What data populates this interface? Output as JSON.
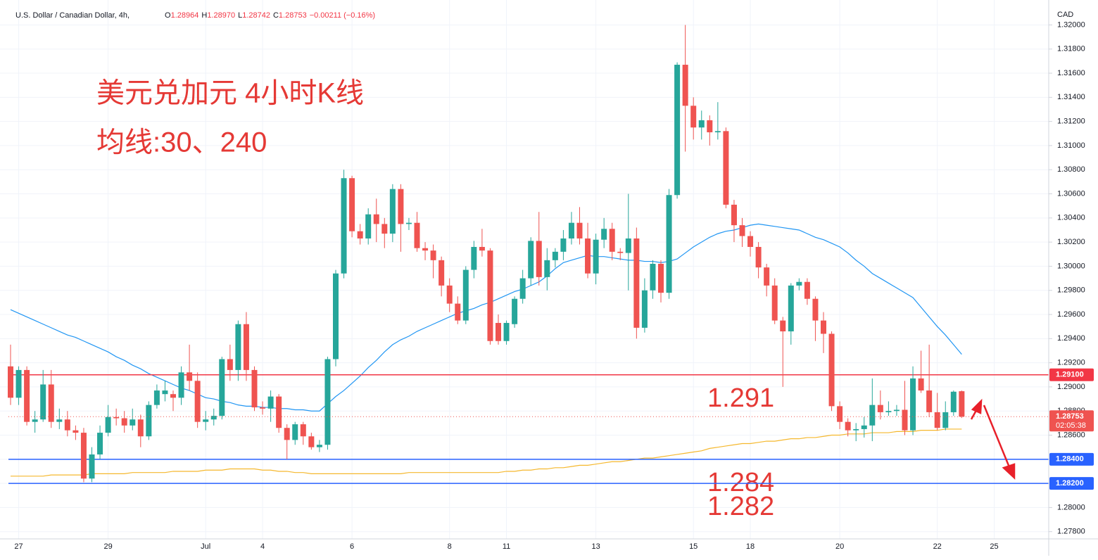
{
  "chart_data": {
    "type": "candlestick",
    "header": {
      "symbol": "U.S. Dollar / Canadian Dollar, 4h,",
      "ohlc": [
        {
          "label": "O",
          "value": "1.28964"
        },
        {
          "label": "H",
          "value": "1.28970"
        },
        {
          "label": "L",
          "value": "1.28742"
        },
        {
          "label": "C",
          "value": "1.28753"
        }
      ],
      "change": "−0.00211 (−0.16%)"
    },
    "annotations": [
      "美元兑加元 4小时K线",
      "均线:30、240"
    ],
    "currency": "CAD",
    "countdown": "02:05:38",
    "up_color": "#26a69a",
    "down_color": "#ef5350",
    "grid": true,
    "ylim": [
      1.2774,
      1.3216
    ],
    "yticks": [
      {
        "value": 1.278,
        "label": "1.27800"
      },
      {
        "value": 1.28,
        "label": "1.28000"
      },
      {
        "value": 1.282,
        "label": "1.28200"
      },
      {
        "value": 1.284,
        "label": "1.28400"
      },
      {
        "value": 1.286,
        "label": "1.28600"
      },
      {
        "value": 1.288,
        "label": "1.28800"
      },
      {
        "value": 1.29,
        "label": "1.29000"
      },
      {
        "value": 1.292,
        "label": "1.29200"
      },
      {
        "value": 1.294,
        "label": "1.29400"
      },
      {
        "value": 1.296,
        "label": "1.29600"
      },
      {
        "value": 1.298,
        "label": "1.29800"
      },
      {
        "value": 1.3,
        "label": "1.30000"
      },
      {
        "value": 1.302,
        "label": "1.30200"
      },
      {
        "value": 1.304,
        "label": "1.30400"
      },
      {
        "value": 1.306,
        "label": "1.30600"
      },
      {
        "value": 1.308,
        "label": "1.30800"
      },
      {
        "value": 1.31,
        "label": "1.31000"
      },
      {
        "value": 1.312,
        "label": "1.31200"
      },
      {
        "value": 1.314,
        "label": "1.31400"
      },
      {
        "value": 1.316,
        "label": "1.31600"
      },
      {
        "value": 1.318,
        "label": "1.31800"
      },
      {
        "value": 1.32,
        "label": "1.32000"
      }
    ],
    "categories": [
      null,
      "27",
      null,
      null,
      null,
      null,
      null,
      null,
      null,
      null,
      null,
      null,
      "29",
      null,
      null,
      null,
      null,
      null,
      null,
      null,
      null,
      null,
      null,
      null,
      "Jul",
      null,
      null,
      null,
      null,
      null,
      null,
      "4",
      null,
      null,
      null,
      null,
      null,
      null,
      null,
      null,
      null,
      null,
      "6",
      null,
      null,
      null,
      null,
      null,
      null,
      null,
      null,
      null,
      null,
      null,
      "8",
      null,
      null,
      null,
      null,
      null,
      null,
      "11",
      null,
      null,
      null,
      null,
      null,
      null,
      null,
      null,
      null,
      null,
      "13",
      null,
      null,
      null,
      null,
      null,
      null,
      null,
      null,
      null,
      null,
      null,
      "15",
      null,
      null,
      null,
      null,
      null,
      null,
      "18",
      null,
      null,
      null,
      null,
      null,
      null,
      null,
      null,
      null,
      null,
      "20",
      null,
      null,
      null,
      null,
      null,
      null,
      null,
      null,
      null,
      null,
      null,
      "22",
      null,
      null,
      null
    ],
    "extra_x_labels": [
      "25"
    ],
    "open": [
      1.2917,
      1.2891,
      1.2914,
      1.2871,
      1.2873,
      1.2902,
      1.2871,
      1.2873,
      1.2864,
      1.2862,
      1.2824,
      1.2844,
      1.2862,
      1.2875,
      1.2874,
      1.2868,
      1.2873,
      1.2859,
      1.2885,
      1.2894,
      1.2894,
      1.2891,
      1.2912,
      1.2905,
      1.2871,
      1.2873,
      1.2876,
      1.2923,
      1.2914,
      1.2952,
      1.2914,
      1.2883,
      1.2882,
      1.2892,
      1.2866,
      1.2856,
      1.2869,
      1.2859,
      1.285,
      1.2852,
      1.2923,
      1.2994,
      1.3073,
      1.3029,
      1.3023,
      1.3043,
      1.3035,
      1.3027,
      1.3064,
      1.3035,
      1.3036,
      1.3015,
      1.3013,
      1.3005,
      1.2984,
      1.2969,
      1.2955,
      1.2997,
      1.3016,
      1.3013,
      1.2953,
      1.2938,
      1.2952,
      1.2973,
      1.299,
      1.3021,
      1.2991,
      1.3005,
      1.3012,
      1.3023,
      1.3036,
      1.3023,
      1.2994,
      1.3022,
      1.3031,
      1.3012,
      1.3011,
      1.3023,
      1.2949,
      1.298,
      1.3002,
      1.2978,
      1.3059,
      1.3167,
      1.3133,
      1.3115,
      1.3121,
      1.3111,
      1.3112,
      1.3051,
      1.3034,
      1.3025,
      1.3016,
      1.2999,
      1.2984,
      1.2955,
      1.2946,
      1.2984,
      1.2987,
      1.2973,
      1.2955,
      1.2944,
      1.2884,
      1.2871,
      1.2864,
      1.2865,
      1.2868,
      1.2885,
      1.2879,
      1.288,
      1.2881,
      1.2864,
      1.2907,
      1.2897,
      1.2879,
      1.2866,
      1.2879,
      1.28964
    ],
    "high": [
      1.2935,
      1.2917,
      1.2917,
      1.288,
      1.2914,
      1.2914,
      1.2882,
      1.288,
      1.2868,
      1.2866,
      1.285,
      1.2868,
      1.2885,
      1.2882,
      1.288,
      1.2882,
      1.2877,
      1.2888,
      1.2902,
      1.2905,
      1.2897,
      1.2917,
      1.2935,
      1.2912,
      1.288,
      1.2882,
      1.2925,
      1.2935,
      1.2955,
      1.2962,
      1.2917,
      1.2888,
      1.2897,
      1.2894,
      1.2869,
      1.2871,
      1.2871,
      1.2862,
      1.2856,
      1.2925,
      1.2997,
      1.308,
      1.3075,
      1.3035,
      1.3048,
      1.3056,
      1.304,
      1.3068,
      1.3068,
      1.304,
      1.3045,
      1.302,
      1.3018,
      1.3008,
      1.299,
      1.2975,
      1.3,
      1.3021,
      1.3031,
      1.3015,
      1.296,
      1.2955,
      1.2975,
      1.2997,
      1.3024,
      1.3045,
      1.3015,
      1.3015,
      1.303,
      1.3045,
      1.3049,
      1.3036,
      1.3027,
      1.304,
      1.3036,
      1.3015,
      1.306,
      1.3032,
      1.299,
      1.3005,
      1.3005,
      1.3064,
      1.3169,
      1.32,
      1.314,
      1.3129,
      1.3125,
      1.3136,
      1.3115,
      1.3055,
      1.304,
      1.3029,
      1.302,
      1.3002,
      1.299,
      1.2958,
      1.2986,
      1.299,
      1.299,
      1.2975,
      1.2962,
      1.2946,
      1.2888,
      1.2874,
      1.287,
      1.2875,
      1.2907,
      1.2897,
      1.2888,
      1.2885,
      1.2905,
      1.2917,
      1.293,
      1.2935,
      1.2895,
      1.2888,
      1.2897,
      1.2897
    ],
    "low": [
      1.2885,
      1.2885,
      1.2868,
      1.2862,
      1.2871,
      1.2866,
      1.2865,
      1.2859,
      1.2856,
      1.2821,
      1.2821,
      1.284,
      1.2859,
      1.2868,
      1.2862,
      1.2864,
      1.285,
      1.2856,
      1.2882,
      1.2888,
      1.288,
      1.2885,
      1.2897,
      1.2866,
      1.2864,
      1.2868,
      1.2873,
      1.2905,
      1.2905,
      1.2905,
      1.288,
      1.2877,
      1.2871,
      1.2862,
      1.284,
      1.2852,
      1.2852,
      1.2848,
      1.2846,
      1.2848,
      1.2917,
      1.299,
      1.3024,
      1.3018,
      1.3018,
      1.302,
      1.3015,
      1.302,
      1.3012,
      1.303,
      1.3012,
      1.3005,
      1.299,
      1.2975,
      1.2962,
      1.2952,
      1.2952,
      1.299,
      1.3008,
      1.2935,
      1.2935,
      1.2935,
      1.2949,
      1.2969,
      1.2984,
      1.2984,
      1.298,
      1.2999,
      1.3005,
      1.3018,
      1.3018,
      1.299,
      1.2985,
      1.3015,
      1.3005,
      1.3005,
      1.298,
      1.294,
      1.2945,
      1.2973,
      1.297,
      1.2973,
      1.3056,
      1.3095,
      1.3105,
      1.3105,
      1.31,
      1.3105,
      1.3048,
      1.302,
      1.3016,
      1.3008,
      1.299,
      1.2975,
      1.2952,
      1.29,
      1.2935,
      1.298,
      1.2968,
      1.2938,
      1.2928,
      1.288,
      1.2865,
      1.2859,
      1.2855,
      1.2858,
      1.2855,
      1.2873,
      1.2876,
      1.2876,
      1.286,
      1.286,
      1.2895,
      1.2875,
      1.2864,
      1.2864,
      1.2876,
      1.28742
    ],
    "close": [
      1.2891,
      1.2914,
      1.2871,
      1.2873,
      1.2902,
      1.2871,
      1.2873,
      1.2864,
      1.2862,
      1.2824,
      1.2844,
      1.2862,
      1.2875,
      1.2874,
      1.2868,
      1.2873,
      1.2859,
      1.2885,
      1.2897,
      1.2897,
      1.2891,
      1.2912,
      1.2905,
      1.2871,
      1.2873,
      1.2876,
      1.2923,
      1.2914,
      1.2952,
      1.2914,
      1.2883,
      1.2882,
      1.2892,
      1.2866,
      1.2856,
      1.2869,
      1.2859,
      1.285,
      1.2852,
      1.2923,
      1.2994,
      1.3073,
      1.3029,
      1.3023,
      1.3043,
      1.3035,
      1.3027,
      1.3064,
      1.3035,
      1.3036,
      1.3015,
      1.3013,
      1.3005,
      1.2984,
      1.2969,
      1.2955,
      1.2997,
      1.3016,
      1.3013,
      1.2938,
      1.2938,
      1.2953,
      1.2973,
      1.299,
      1.3021,
      1.2991,
      1.3005,
      1.3012,
      1.3023,
      1.3036,
      1.3023,
      1.2994,
      1.3022,
      1.3031,
      1.3012,
      1.3011,
      1.3023,
      1.2949,
      1.298,
      1.3002,
      1.2978,
      1.3059,
      1.3167,
      1.3133,
      1.3115,
      1.3121,
      1.3111,
      1.3112,
      1.3051,
      1.3034,
      1.3025,
      1.3016,
      1.2999,
      1.2984,
      1.2955,
      1.2946,
      1.2984,
      1.2987,
      1.2973,
      1.2955,
      1.2944,
      1.2884,
      1.2871,
      1.2864,
      1.2865,
      1.2868,
      1.2885,
      1.2879,
      1.288,
      1.2881,
      1.2864,
      1.2907,
      1.2897,
      1.2879,
      1.2866,
      1.2879,
      1.2896,
      1.28753
    ],
    "overlays": [
      {
        "color": "#2196f3",
        "values": [
          1.2964,
          1.2961,
          1.2958,
          1.2955,
          1.2952,
          1.2949,
          1.2946,
          1.2943,
          1.2941,
          1.2938,
          1.2935,
          1.2932,
          1.2929,
          1.2925,
          1.2922,
          1.2918,
          1.2915,
          1.2911,
          1.2908,
          1.2905,
          1.2902,
          1.2899,
          1.2897,
          1.2894,
          1.2891,
          1.289,
          1.2888,
          1.2887,
          1.2885,
          1.2884,
          1.2884,
          1.2883,
          1.2883,
          1.2882,
          1.2882,
          1.2881,
          1.2881,
          1.288,
          1.288,
          1.2886,
          1.2892,
          1.2897,
          1.2903,
          1.2909,
          1.2916,
          1.2922,
          1.2929,
          1.2935,
          1.2939,
          1.2942,
          1.2946,
          1.2949,
          1.2952,
          1.2955,
          1.2958,
          1.2961,
          1.2963,
          1.2965,
          1.2968,
          1.297,
          1.2973,
          1.2976,
          1.2979,
          1.2981,
          1.2984,
          1.2987,
          1.2992,
          1.2998,
          1.3003,
          1.3005,
          1.3007,
          1.3009,
          1.3008,
          1.3008,
          1.3007,
          1.3006,
          1.3005,
          1.3005,
          1.3004,
          1.3004,
          1.3003,
          1.3004,
          1.3006,
          1.3011,
          1.3016,
          1.302,
          1.3024,
          1.3027,
          1.3029,
          1.303,
          1.3032,
          1.3034,
          1.3035,
          1.3034,
          1.3033,
          1.3032,
          1.3031,
          1.303,
          1.3027,
          1.3024,
          1.3022,
          1.3019,
          1.3016,
          1.3011,
          1.3005,
          1.3,
          1.2994,
          1.299,
          1.2986,
          1.2982,
          1.2978,
          1.2974,
          1.2966,
          1.2958,
          1.295,
          1.2943,
          1.2935,
          1.2927
        ]
      },
      {
        "color": "#f5b82e",
        "values": [
          1.2826,
          1.2826,
          1.2826,
          1.2826,
          1.2826,
          1.2827,
          1.2827,
          1.2827,
          1.2827,
          1.2827,
          1.2828,
          1.2828,
          1.2828,
          1.2828,
          1.2828,
          1.2829,
          1.2829,
          1.2829,
          1.2829,
          1.2829,
          1.283,
          1.283,
          1.283,
          1.283,
          1.2831,
          1.2831,
          1.2831,
          1.2832,
          1.2832,
          1.2832,
          1.2832,
          1.2831,
          1.2831,
          1.283,
          1.283,
          1.2829,
          1.2829,
          1.2828,
          1.2828,
          1.2828,
          1.2828,
          1.2828,
          1.2828,
          1.2828,
          1.2828,
          1.2828,
          1.2828,
          1.2828,
          1.2828,
          1.2829,
          1.2829,
          1.2829,
          1.2829,
          1.2829,
          1.2829,
          1.2829,
          1.2829,
          1.2829,
          1.2829,
          1.2829,
          1.2829,
          1.283,
          1.283,
          1.2831,
          1.2831,
          1.2832,
          1.2832,
          1.2833,
          1.2833,
          1.2834,
          1.2835,
          1.2835,
          1.2836,
          1.2837,
          1.2838,
          1.2838,
          1.2839,
          1.284,
          1.2841,
          1.2841,
          1.2842,
          1.2843,
          1.2844,
          1.2845,
          1.2846,
          1.2847,
          1.2849,
          1.285,
          1.2851,
          1.2852,
          1.2853,
          1.2853,
          1.2854,
          1.2855,
          1.2855,
          1.2856,
          1.2857,
          1.2857,
          1.2858,
          1.2858,
          1.2859,
          1.286,
          1.286,
          1.2861,
          1.2861,
          1.2861,
          1.2862,
          1.2862,
          1.2862,
          1.2863,
          1.2863,
          1.2863,
          1.2864,
          1.2864,
          1.2864,
          1.2865,
          1.2865,
          1.2865
        ]
      }
    ],
    "levels": [
      {
        "value": 1.291,
        "label": "1.29100",
        "color": "#f23645"
      },
      {
        "value": 1.284,
        "label": "1.28400",
        "color": "#2962ff"
      },
      {
        "value": 1.282,
        "label": "1.28200",
        "color": "#2962ff"
      }
    ]
  }
}
